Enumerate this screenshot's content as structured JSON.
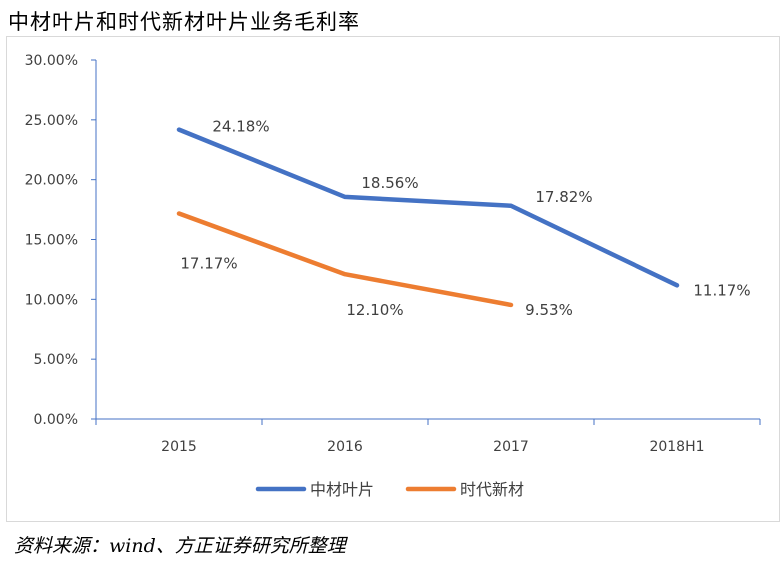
{
  "title": "中材叶片和时代新材叶片业务毛利率",
  "source": "资料来源：wind、方正证券研究所整理",
  "chart_data": {
    "type": "line",
    "categories": [
      "2015",
      "2016",
      "2017",
      "2018H1"
    ],
    "ylim": [
      0,
      30
    ],
    "y_ticks": [
      "0.00%",
      "5.00%",
      "10.00%",
      "15.00%",
      "20.00%",
      "25.00%",
      "30.00%"
    ],
    "legend_position": "bottom",
    "grid": false,
    "series": [
      {
        "name": "中材叶片",
        "color": "#4472C4",
        "values": [
          24.18,
          18.56,
          17.82,
          11.17
        ],
        "labels": [
          "24.18%",
          "18.56%",
          "17.82%",
          "11.17%"
        ]
      },
      {
        "name": "时代新材",
        "color": "#ED7D31",
        "values": [
          17.17,
          12.1,
          9.53,
          null
        ],
        "labels": [
          "17.17%",
          "12.10%",
          "9.53%",
          null
        ]
      }
    ]
  }
}
